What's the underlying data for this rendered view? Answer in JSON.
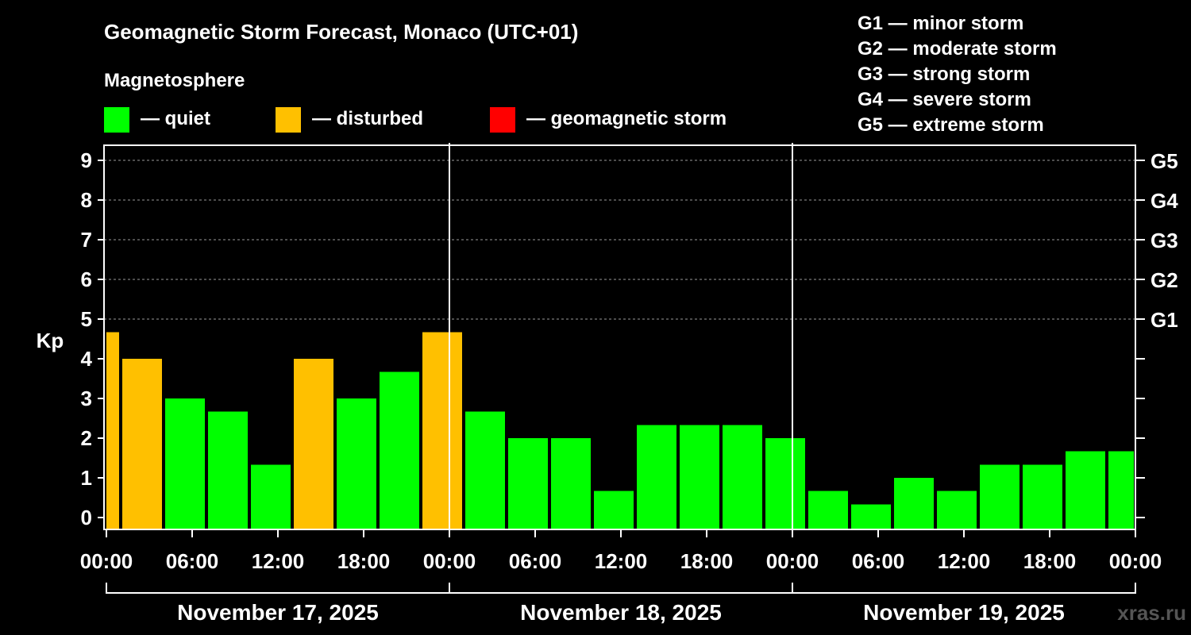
{
  "chart_data": {
    "type": "bar",
    "title": "Geomagnetic Storm Forecast, Monaco (UTC+01)",
    "subtitle": "Magnetosphere",
    "ylabel": "Kp",
    "ylim": [
      0,
      9
    ],
    "yticks": [
      "0",
      "1",
      "2",
      "3",
      "4",
      "5",
      "6",
      "7",
      "8",
      "9"
    ],
    "storm_levels": [
      {
        "label": "G1",
        "kp": 5
      },
      {
        "label": "G2",
        "kp": 6
      },
      {
        "label": "G3",
        "kp": 7
      },
      {
        "label": "G4",
        "kp": 8
      },
      {
        "label": "G5",
        "kp": 9
      }
    ],
    "xticks": [
      "00:00",
      "06:00",
      "12:00",
      "18:00",
      "00:00",
      "06:00",
      "12:00",
      "18:00",
      "00:00",
      "06:00",
      "12:00",
      "18:00",
      "00:00"
    ],
    "days": [
      "November 17, 2025",
      "November 18, 2025",
      "November 19, 2025"
    ],
    "state_legend": [
      {
        "state": "quiet",
        "label": "— quiet",
        "color": "#00ff00"
      },
      {
        "state": "disturbed",
        "label": "— disturbed",
        "color": "#ffc000"
      },
      {
        "state": "storm",
        "label": "— geomagnetic storm",
        "color": "#ff0000"
      }
    ],
    "scale_legend": [
      "G1 — minor storm",
      "G2 — moderate storm",
      "G3 — strong storm",
      "G4 — severe storm",
      "G5 — extreme storm"
    ],
    "watermark": "xras.ru",
    "bars": [
      {
        "start_hour": 0,
        "end_hour": 1,
        "kp": 4.67,
        "state": "disturbed"
      },
      {
        "start_hour": 1,
        "end_hour": 4,
        "kp": 4.0,
        "state": "disturbed"
      },
      {
        "start_hour": 4,
        "end_hour": 7,
        "kp": 3.0,
        "state": "quiet"
      },
      {
        "start_hour": 7,
        "end_hour": 10,
        "kp": 2.67,
        "state": "quiet"
      },
      {
        "start_hour": 10,
        "end_hour": 13,
        "kp": 1.33,
        "state": "quiet"
      },
      {
        "start_hour": 13,
        "end_hour": 16,
        "kp": 4.0,
        "state": "disturbed"
      },
      {
        "start_hour": 16,
        "end_hour": 19,
        "kp": 3.0,
        "state": "quiet"
      },
      {
        "start_hour": 19,
        "end_hour": 22,
        "kp": 3.67,
        "state": "quiet"
      },
      {
        "start_hour": 22,
        "end_hour": 25,
        "kp": 4.67,
        "state": "disturbed"
      },
      {
        "start_hour": 25,
        "end_hour": 28,
        "kp": 2.67,
        "state": "quiet"
      },
      {
        "start_hour": 28,
        "end_hour": 31,
        "kp": 2.0,
        "state": "quiet"
      },
      {
        "start_hour": 31,
        "end_hour": 34,
        "kp": 2.0,
        "state": "quiet"
      },
      {
        "start_hour": 34,
        "end_hour": 37,
        "kp": 0.67,
        "state": "quiet"
      },
      {
        "start_hour": 37,
        "end_hour": 40,
        "kp": 2.33,
        "state": "quiet"
      },
      {
        "start_hour": 40,
        "end_hour": 43,
        "kp": 2.33,
        "state": "quiet"
      },
      {
        "start_hour": 43,
        "end_hour": 46,
        "kp": 2.33,
        "state": "quiet"
      },
      {
        "start_hour": 46,
        "end_hour": 49,
        "kp": 2.0,
        "state": "quiet"
      },
      {
        "start_hour": 49,
        "end_hour": 52,
        "kp": 0.67,
        "state": "quiet"
      },
      {
        "start_hour": 52,
        "end_hour": 55,
        "kp": 0.33,
        "state": "quiet"
      },
      {
        "start_hour": 55,
        "end_hour": 58,
        "kp": 1.0,
        "state": "quiet"
      },
      {
        "start_hour": 58,
        "end_hour": 61,
        "kp": 0.67,
        "state": "quiet"
      },
      {
        "start_hour": 61,
        "end_hour": 64,
        "kp": 1.33,
        "state": "quiet"
      },
      {
        "start_hour": 64,
        "end_hour": 67,
        "kp": 1.33,
        "state": "quiet"
      },
      {
        "start_hour": 67,
        "end_hour": 70,
        "kp": 1.67,
        "state": "quiet"
      },
      {
        "start_hour": 70,
        "end_hour": 72,
        "kp": 1.67,
        "state": "quiet"
      }
    ]
  }
}
